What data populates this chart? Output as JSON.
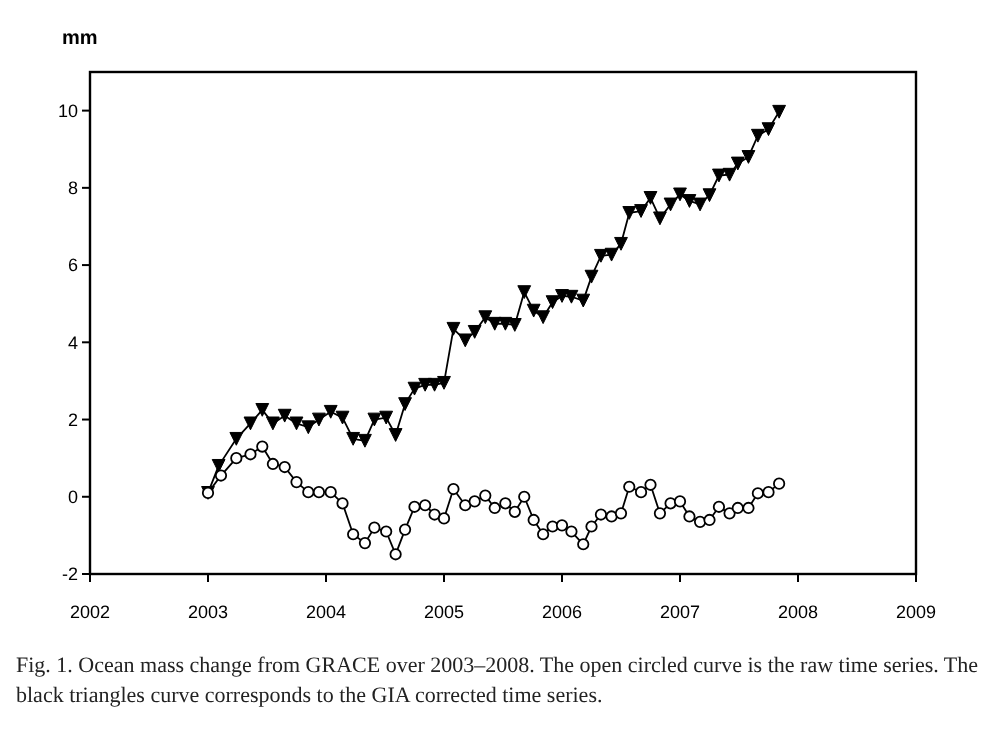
{
  "chart_data": {
    "type": "line",
    "ylabel": "mm",
    "xlim": [
      2002,
      2009
    ],
    "xticks": [
      2002,
      2003,
      2004,
      2005,
      2006,
      2007,
      2008,
      2009
    ],
    "ylim": [
      -2,
      11
    ],
    "yticks": [
      -2,
      0,
      2,
      4,
      6,
      8,
      10
    ],
    "grid": false,
    "line_style": "solid",
    "series": [
      {
        "color": "#000000",
        "marker": "triangle",
        "x": [
          2003.0,
          2003.09,
          2003.24,
          2003.36,
          2003.46,
          2003.55,
          2003.65,
          2003.75,
          2003.85,
          2003.94,
          2004.04,
          2004.14,
          2004.23,
          2004.33,
          2004.41,
          2004.51,
          2004.59,
          2004.67,
          2004.75,
          2004.84,
          2004.92,
          2005.0,
          2005.08,
          2005.18,
          2005.26,
          2005.35,
          2005.43,
          2005.52,
          2005.6,
          2005.68,
          2005.76,
          2005.84,
          2005.92,
          2006.0,
          2006.08,
          2006.18,
          2006.25,
          2006.33,
          2006.42,
          2006.5,
          2006.57,
          2006.67,
          2006.75,
          2006.83,
          2006.92,
          2007.0,
          2007.08,
          2007.17,
          2007.25,
          2007.33,
          2007.42,
          2007.49,
          2007.58,
          2007.66,
          2007.75,
          2007.84
        ],
        "values": [
          0.1,
          0.8,
          1.5,
          1.9,
          2.25,
          1.9,
          2.1,
          1.9,
          1.8,
          2.0,
          2.2,
          2.05,
          1.5,
          1.45,
          2.0,
          2.05,
          1.6,
          2.4,
          2.8,
          2.9,
          2.9,
          2.95,
          4.35,
          4.05,
          4.27,
          4.65,
          4.48,
          4.48,
          4.45,
          5.3,
          4.82,
          4.65,
          5.04,
          5.2,
          5.18,
          5.08,
          5.7,
          6.24,
          6.27,
          6.55,
          7.35,
          7.4,
          7.74,
          7.21,
          7.57,
          7.83,
          7.66,
          7.57,
          7.81,
          8.32,
          8.34,
          8.63,
          8.8,
          9.35,
          9.52,
          9.97
        ]
      },
      {
        "color": "#000000",
        "marker": "circle",
        "x": [
          2003.0,
          2003.11,
          2003.24,
          2003.36,
          2003.46,
          2003.55,
          2003.65,
          2003.75,
          2003.85,
          2003.94,
          2004.04,
          2004.14,
          2004.23,
          2004.33,
          2004.41,
          2004.51,
          2004.59,
          2004.67,
          2004.75,
          2004.84,
          2004.92,
          2005.0,
          2005.08,
          2005.18,
          2005.26,
          2005.35,
          2005.43,
          2005.52,
          2005.6,
          2005.68,
          2005.76,
          2005.84,
          2005.92,
          2006.0,
          2006.08,
          2006.18,
          2006.25,
          2006.33,
          2006.42,
          2006.5,
          2006.57,
          2006.67,
          2006.75,
          2006.83,
          2006.92,
          2007.0,
          2007.08,
          2007.17,
          2007.25,
          2007.33,
          2007.42,
          2007.49,
          2007.58,
          2007.66,
          2007.75,
          2007.84
        ],
        "values": [
          0.1,
          0.55,
          1.0,
          1.1,
          1.3,
          0.85,
          0.77,
          0.38,
          0.12,
          0.12,
          0.12,
          -0.17,
          -0.97,
          -1.2,
          -0.8,
          -0.9,
          -1.49,
          -0.85,
          -0.26,
          -0.22,
          -0.46,
          -0.56,
          0.2,
          -0.22,
          -0.12,
          0.03,
          -0.29,
          -0.17,
          -0.39,
          0.0,
          -0.6,
          -0.97,
          -0.77,
          -0.74,
          -0.9,
          -1.23,
          -0.77,
          -0.46,
          -0.51,
          -0.43,
          0.26,
          0.12,
          0.31,
          -0.43,
          -0.17,
          -0.12,
          -0.51,
          -0.65,
          -0.6,
          -0.26,
          -0.43,
          -0.29,
          -0.29,
          0.09,
          0.12,
          0.34
        ]
      }
    ],
    "annotations": [
      "Fig. 1. Ocean mass change from GRACE over 2003–2008. The open circled curve is the raw time series. The black triangles curve corresponds to the GIA corrected time series."
    ]
  }
}
